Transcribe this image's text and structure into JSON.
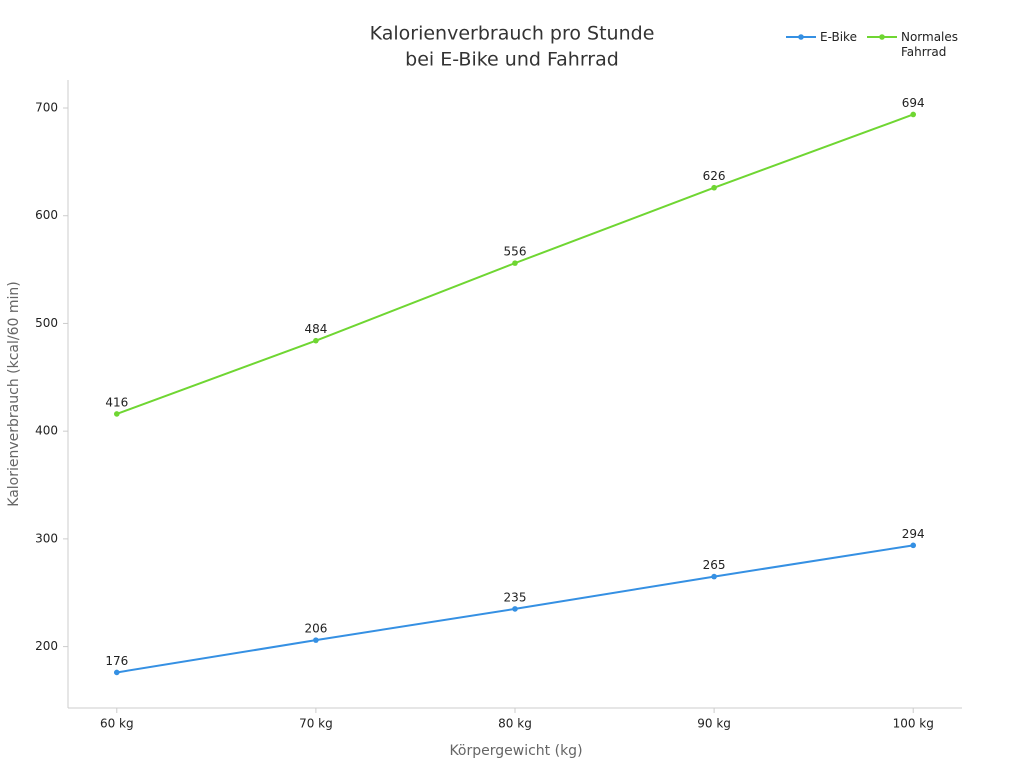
{
  "chart_data": {
    "type": "line",
    "title": [
      "Kalorienverbrauch pro Stunde",
      "bei E-Bike und Fahrrad"
    ],
    "x_label": "Körpergewicht (kg)",
    "y_label": "Kalorienverbrauch (kcal/60 min)",
    "categories": [
      "60 kg",
      "70 kg",
      "80 kg",
      "90 kg",
      "100 kg"
    ],
    "series": [
      {
        "name": "E-Bike",
        "color": "#3590e3",
        "values": [
          176,
          206,
          235,
          265,
          294
        ]
      },
      {
        "name": "Normales Fahrrad",
        "color": "#6fd632",
        "values": [
          416,
          484,
          556,
          626,
          694
        ]
      }
    ],
    "ylim": [
      143,
      726
    ],
    "yticks": [
      200,
      300,
      400,
      500,
      600,
      700
    ],
    "grid": false,
    "legend": "top-right"
  }
}
